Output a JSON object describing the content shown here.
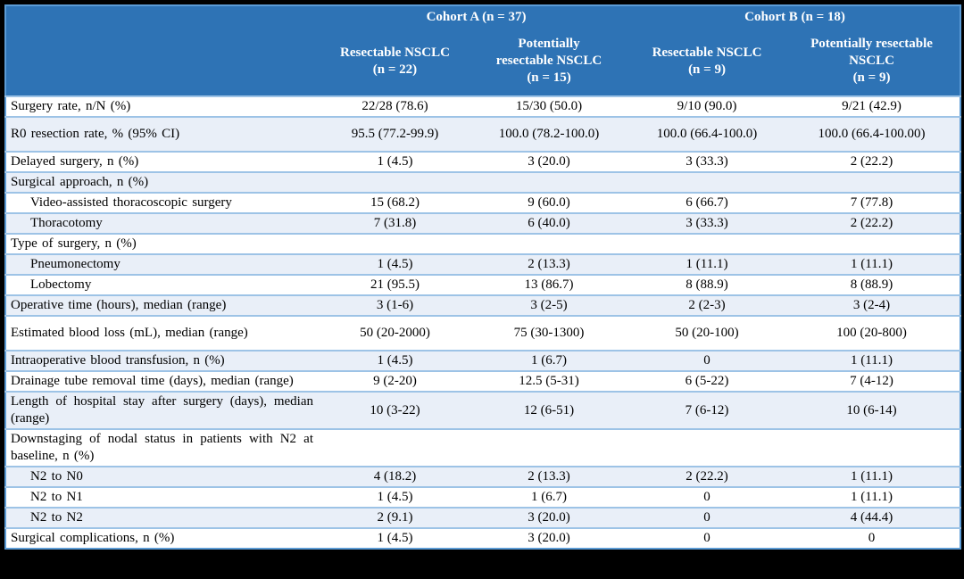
{
  "colors": {
    "header_bg": "#2E73B5",
    "header_text": "#FFFFFF",
    "row_shaded": "#E9EFF8",
    "separator": "#9DC3E6",
    "outer_border": "#5B9BD5",
    "frame": "#000000",
    "body_text": "#000000"
  },
  "header": {
    "corner_label": "",
    "cohort_a": "Cohort A (n = 37)",
    "cohort_b": "Cohort B (n = 18)",
    "subcolumns": [
      "Resectable NSCLC\n(n = 22)",
      "Potentially\nresectable NSCLC\n(n = 15)",
      "Resectable NSCLC\n(n = 9)",
      "Potentially resectable\nNSCLC\n(n = 9)"
    ]
  },
  "rows": [
    {
      "label": "Surgery rate, n/N (%)",
      "values": [
        "22/28 (78.6)",
        "15/30 (50.0)",
        "9/10 (90.0)",
        "9/21 (42.9)"
      ]
    },
    {
      "label": "R0 resection rate, % (95% CI)",
      "values": [
        "95.5 (77.2-99.9)",
        "100.0 (78.2-100.0)",
        "100.0 (66.4-100.0)",
        "100.0 (66.4-100.00)"
      ],
      "tall": true
    },
    {
      "label": "Delayed surgery, n (%)",
      "values": [
        "1 (4.5)",
        "3 (20.0)",
        "3 (33.3)",
        "2 (22.2)"
      ]
    },
    {
      "label": "Surgical approach, n (%)",
      "values": [
        "",
        "",
        "",
        ""
      ],
      "section": true
    },
    {
      "label": "Video-assisted thoracoscopic surgery",
      "values": [
        "15 (68.2)",
        "9 (60.0)",
        "6 (66.7)",
        "7 (77.8)"
      ],
      "indent": true
    },
    {
      "label": "Thoracotomy",
      "values": [
        "7 (31.8)",
        "6 (40.0)",
        "3 (33.3)",
        "2 (22.2)"
      ],
      "indent": true
    },
    {
      "label": "Type of surgery, n (%)",
      "values": [
        "",
        "",
        "",
        ""
      ],
      "section": true
    },
    {
      "label": "Pneumonectomy",
      "values": [
        "1 (4.5)",
        "2 (13.3)",
        "1 (11.1)",
        "1 (11.1)"
      ],
      "indent": true
    },
    {
      "label": "Lobectomy",
      "values": [
        "21 (95.5)",
        "13 (86.7)",
        "8 (88.9)",
        "8 (88.9)"
      ],
      "indent": true
    },
    {
      "label": "Operative time (hours), median (range)",
      "values": [
        "3 (1-6)",
        "3 (2-5)",
        "2 (2-3)",
        "3 (2-4)"
      ]
    },
    {
      "label": "Estimated blood loss (mL), median (range)",
      "values": [
        "50 (20-2000)",
        "75 (30-1300)",
        "50 (20-100)",
        "100 (20-800)"
      ],
      "tall": true
    },
    {
      "label": "Intraoperative blood transfusion, n (%)",
      "values": [
        "1 (4.5)",
        "1 (6.7)",
        "0",
        "1 (11.1)"
      ]
    },
    {
      "label": "Drainage tube removal time (days), median (range)",
      "values": [
        "9 (2-20)",
        "12.5 (5-31)",
        "6 (5-22)",
        "7 (4-12)"
      ]
    },
    {
      "label": "Length of hospital stay after surgery (days), median (range)",
      "values": [
        "10 (3-22)",
        "12 (6-51)",
        "7 (6-12)",
        "10 (6-14)"
      ]
    },
    {
      "label": "Downstaging of nodal status in patients with N2 at baseline, n (%)",
      "values": [
        "",
        "",
        "",
        ""
      ],
      "section": true
    },
    {
      "label": "N2 to N0",
      "values": [
        "4 (18.2)",
        "2 (13.3)",
        "2 (22.2)",
        "1 (11.1)"
      ],
      "indent": true
    },
    {
      "label": "N2 to N1",
      "values": [
        "1 (4.5)",
        "1 (6.7)",
        "0",
        "1 (11.1)"
      ],
      "indent": true
    },
    {
      "label": "N2 to N2",
      "values": [
        "2 (9.1)",
        "3 (20.0)",
        "0",
        "4 (44.4)"
      ],
      "indent": true
    },
    {
      "label": "Surgical complications, n (%)",
      "values": [
        "1 (4.5)",
        "3 (20.0)",
        "0",
        "0"
      ]
    }
  ]
}
